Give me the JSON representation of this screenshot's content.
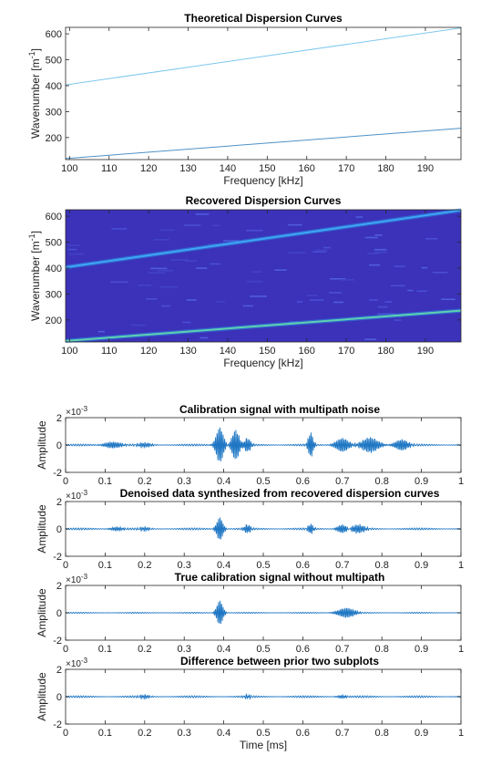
{
  "chart_data": [
    {
      "type": "line",
      "title": "Theoretical Dispersion Curves",
      "xlabel": "Frequency [kHz]",
      "ylabel": "Wavenumber [m",
      "ylabel_sup": "-1",
      "ylabel_close": "]",
      "xlim": [
        99,
        199
      ],
      "ylim": [
        115,
        625
      ],
      "xticks": [
        100,
        110,
        120,
        130,
        140,
        150,
        160,
        170,
        180,
        190
      ],
      "yticks": [
        200,
        300,
        400,
        500,
        600
      ],
      "series": [
        {
          "x": [
            99,
            199
          ],
          "y": [
            403,
            623
          ],
          "color": "#7ec8ee"
        },
        {
          "x": [
            99,
            199
          ],
          "y": [
            119,
            236
          ],
          "color": "#4d91c8"
        }
      ]
    },
    {
      "type": "heatmap",
      "title": "Recovered Dispersion Curves",
      "xlabel": "Frequency [kHz]",
      "ylabel": "Wavenumber [m",
      "ylabel_sup": "-1",
      "ylabel_close": "]",
      "xlim": [
        99,
        199
      ],
      "ylim": [
        115,
        625
      ],
      "xticks": [
        100,
        110,
        120,
        130,
        140,
        150,
        160,
        170,
        180,
        190
      ],
      "yticks": [
        200,
        300,
        400,
        500,
        600
      ],
      "background_color": "#3b32b9",
      "curves": [
        {
          "x": [
            99,
            199
          ],
          "y": [
            403,
            623
          ],
          "color": "#3fa6f5"
        },
        {
          "x": [
            99,
            199
          ],
          "y": [
            119,
            236
          ],
          "color": "#5fd0b0"
        }
      ]
    },
    {
      "type": "line",
      "title": "Calibration signal with multipath noise",
      "ylabel": "Amplitude",
      "exponent": "×10",
      "exponent_power": "-3",
      "xlim": [
        0,
        1
      ],
      "ylim": [
        -2,
        2
      ],
      "xticks": [
        "0",
        "0.1",
        "0.2",
        "0.3",
        "0.4",
        "0.5",
        "0.6",
        "0.7",
        "0.8",
        "0.9",
        "1"
      ],
      "yticks": [
        "2",
        "0",
        "-2"
      ],
      "color": "#1f77c4",
      "noise_amplitude": 0.07,
      "wave_packets": [
        {
          "center": 0.12,
          "width": 0.025,
          "amplitude": 0.22
        },
        {
          "center": 0.2,
          "width": 0.02,
          "amplitude": 0.15
        },
        {
          "center": 0.39,
          "width": 0.012,
          "amplitude": 1.3
        },
        {
          "center": 0.43,
          "width": 0.012,
          "amplitude": 1.1
        },
        {
          "center": 0.46,
          "width": 0.01,
          "amplitude": 0.5
        },
        {
          "center": 0.62,
          "width": 0.008,
          "amplitude": 0.9
        },
        {
          "center": 0.7,
          "width": 0.02,
          "amplitude": 0.5
        },
        {
          "center": 0.77,
          "width": 0.025,
          "amplitude": 0.55
        },
        {
          "center": 0.85,
          "width": 0.02,
          "amplitude": 0.4
        }
      ]
    },
    {
      "type": "line",
      "title": "Denoised data synthesized from recovered dispersion curves",
      "ylabel": "Amplitude",
      "exponent": "×10",
      "exponent_power": "-3",
      "xlim": [
        0,
        1
      ],
      "ylim": [
        -2,
        2
      ],
      "xticks": [
        "0",
        "0.1",
        "0.2",
        "0.3",
        "0.4",
        "0.5",
        "0.6",
        "0.7",
        "0.8",
        "0.9",
        "1"
      ],
      "yticks": [
        "2",
        "0",
        "-2"
      ],
      "color": "#1f77c4",
      "noise_amplitude": 0.07,
      "wave_packets": [
        {
          "center": 0.13,
          "width": 0.02,
          "amplitude": 0.12
        },
        {
          "center": 0.2,
          "width": 0.015,
          "amplitude": 0.12
        },
        {
          "center": 0.39,
          "width": 0.01,
          "amplitude": 0.85
        },
        {
          "center": 0.46,
          "width": 0.01,
          "amplitude": 0.3
        },
        {
          "center": 0.62,
          "width": 0.008,
          "amplitude": 0.35
        },
        {
          "center": 0.7,
          "width": 0.015,
          "amplitude": 0.3
        },
        {
          "center": 0.74,
          "width": 0.02,
          "amplitude": 0.3
        }
      ]
    },
    {
      "type": "line",
      "title": "True calibration signal without multipath",
      "ylabel": "Amplitude",
      "exponent": "×10",
      "exponent_power": "-3",
      "xlim": [
        0,
        1
      ],
      "ylim": [
        -2,
        2
      ],
      "xticks": [
        "0",
        "0.1",
        "0.2",
        "0.3",
        "0.4",
        "0.5",
        "0.6",
        "0.7",
        "0.8",
        "0.9",
        "1"
      ],
      "yticks": [
        "2",
        "0",
        "-2"
      ],
      "color": "#1f77c4",
      "noise_amplitude": 0.04,
      "wave_packets": [
        {
          "center": 0.39,
          "width": 0.01,
          "amplitude": 0.9
        },
        {
          "center": 0.71,
          "width": 0.025,
          "amplitude": 0.35
        }
      ]
    },
    {
      "type": "line",
      "title": "Difference between prior two subplots",
      "ylabel": "Amplitude",
      "xlabel": "Time [ms]",
      "exponent": "×10",
      "exponent_power": "-3",
      "xlim": [
        0,
        1
      ],
      "ylim": [
        -2,
        2
      ],
      "xticks": [
        "0",
        "0.1",
        "0.2",
        "0.3",
        "0.4",
        "0.5",
        "0.6",
        "0.7",
        "0.8",
        "0.9",
        "1"
      ],
      "yticks": [
        "2",
        "0",
        "-2"
      ],
      "color": "#1f77c4",
      "noise_amplitude": 0.07,
      "wave_packets": [
        {
          "center": 0.2,
          "width": 0.015,
          "amplitude": 0.12
        },
        {
          "center": 0.46,
          "width": 0.01,
          "amplitude": 0.12
        },
        {
          "center": 0.7,
          "width": 0.015,
          "amplitude": 0.1
        }
      ]
    }
  ]
}
